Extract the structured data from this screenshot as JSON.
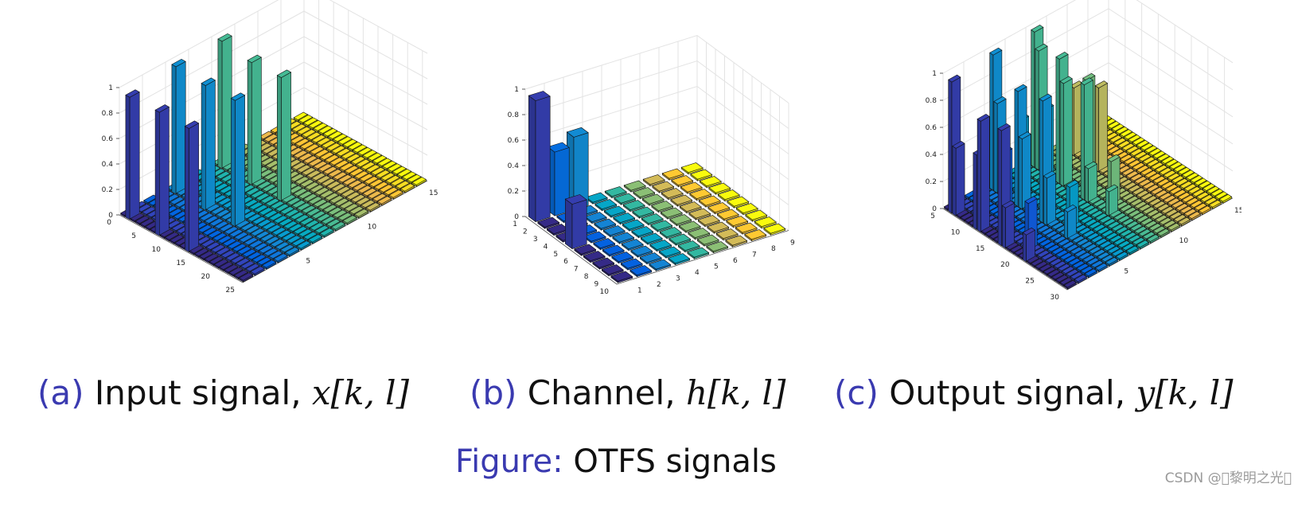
{
  "chart_data": [
    {
      "type": "bar3d",
      "panel": "a",
      "caption_tag": "(a)",
      "caption_text": "Input signal,",
      "caption_math": "x[k, l]",
      "axes": {
        "z_ticks": [
          "0",
          "0.2",
          "0.4",
          "0.6",
          "0.8",
          "1"
        ],
        "row_ticks": [
          "0",
          "5",
          "10",
          "15",
          "20",
          "25"
        ],
        "col_ticks": [
          "5",
          "10",
          "15"
        ]
      },
      "rows": 25,
      "cols": 16,
      "zlim": [
        0,
        1
      ],
      "spikes": [
        {
          "row": 2,
          "col": 1,
          "value": 0.96
        },
        {
          "row": 8,
          "col": 1,
          "value": 0.97
        },
        {
          "row": 14,
          "col": 1,
          "value": 0.97
        },
        {
          "row": 2,
          "col": 5,
          "value": 1.0
        },
        {
          "row": 8,
          "col": 5,
          "value": 0.98
        },
        {
          "row": 14,
          "col": 5,
          "value": 0.99
        },
        {
          "row": 2,
          "col": 9,
          "value": 1.0
        },
        {
          "row": 8,
          "col": 9,
          "value": 0.96
        },
        {
          "row": 14,
          "col": 9,
          "value": 0.97
        }
      ]
    },
    {
      "type": "bar3d",
      "panel": "b",
      "caption_tag": "(b)",
      "caption_text": "Channel,",
      "caption_math": "h[k, l]",
      "axes": {
        "z_ticks": [
          "0",
          "0.2",
          "0.4",
          "0.6",
          "0.8",
          "1"
        ],
        "row_ticks": [
          "1",
          "2",
          "3",
          "4",
          "5",
          "6",
          "7",
          "8",
          "9",
          "10"
        ],
        "col_ticks": [
          "1",
          "2",
          "3",
          "4",
          "5",
          "6",
          "7",
          "8",
          "9"
        ]
      },
      "rows": 10,
      "cols": 9,
      "zlim": [
        0,
        1
      ],
      "spikes": [
        {
          "row": 1,
          "col": 1,
          "value": 0.95
        },
        {
          "row": 1,
          "col": 2,
          "value": 0.5
        },
        {
          "row": 1,
          "col": 3,
          "value": 0.57
        },
        {
          "row": 5,
          "col": 1,
          "value": 0.35
        }
      ]
    },
    {
      "type": "bar3d",
      "panel": "c",
      "caption_tag": "(c)",
      "caption_text": "Output signal,",
      "caption_math": "y[k, l]",
      "axes": {
        "z_ticks": [
          "0",
          "0.2",
          "0.4",
          "0.6",
          "0.8",
          "1"
        ],
        "row_ticks": [
          "5",
          "10",
          "15",
          "20",
          "25",
          "30"
        ],
        "col_ticks": [
          "5",
          "10",
          "15"
        ]
      },
      "rows": 30,
      "cols": 16,
      "zlim": [
        0,
        1
      ],
      "spikes": [
        {
          "row": 2,
          "col": 1,
          "value": 0.97
        },
        {
          "row": 3,
          "col": 1,
          "value": 0.5
        },
        {
          "row": 8,
          "col": 1,
          "value": 0.55
        },
        {
          "row": 9,
          "col": 1,
          "value": 0.82
        },
        {
          "row": 14,
          "col": 1,
          "value": 0.85
        },
        {
          "row": 15,
          "col": 1,
          "value": 0.3
        },
        {
          "row": 20,
          "col": 1,
          "value": 0.2
        },
        {
          "row": 6,
          "col": 2,
          "value": 0.45
        },
        {
          "row": 12,
          "col": 2,
          "value": 0.6
        },
        {
          "row": 18,
          "col": 2,
          "value": 0.35
        },
        {
          "row": 2,
          "col": 5,
          "value": 1.0
        },
        {
          "row": 3,
          "col": 5,
          "value": 0.66
        },
        {
          "row": 8,
          "col": 5,
          "value": 0.85
        },
        {
          "row": 9,
          "col": 5,
          "value": 0.52
        },
        {
          "row": 14,
          "col": 5,
          "value": 0.9
        },
        {
          "row": 15,
          "col": 5,
          "value": 0.35
        },
        {
          "row": 20,
          "col": 5,
          "value": 0.2
        },
        {
          "row": 6,
          "col": 6,
          "value": 0.55
        },
        {
          "row": 12,
          "col": 6,
          "value": 0.75
        },
        {
          "row": 18,
          "col": 6,
          "value": 0.3
        },
        {
          "row": 2,
          "col": 9,
          "value": 1.0
        },
        {
          "row": 3,
          "col": 9,
          "value": 0.88
        },
        {
          "row": 8,
          "col": 9,
          "value": 0.92
        },
        {
          "row": 9,
          "col": 9,
          "value": 0.76
        },
        {
          "row": 14,
          "col": 9,
          "value": 0.85
        },
        {
          "row": 15,
          "col": 9,
          "value": 0.25
        },
        {
          "row": 20,
          "col": 9,
          "value": 0.18
        },
        {
          "row": 6,
          "col": 10,
          "value": 0.6
        },
        {
          "row": 12,
          "col": 10,
          "value": 0.8
        },
        {
          "row": 18,
          "col": 10,
          "value": 0.32
        },
        {
          "row": 4,
          "col": 12,
          "value": 0.5
        },
        {
          "row": 10,
          "col": 12,
          "value": 0.62
        },
        {
          "row": 5,
          "col": 13,
          "value": 0.3
        }
      ]
    }
  ],
  "figure_caption": {
    "tag": "Figure:",
    "text": "OTFS signals"
  },
  "watermark": "CSDN @\u0000黎明之光\u0000"
}
